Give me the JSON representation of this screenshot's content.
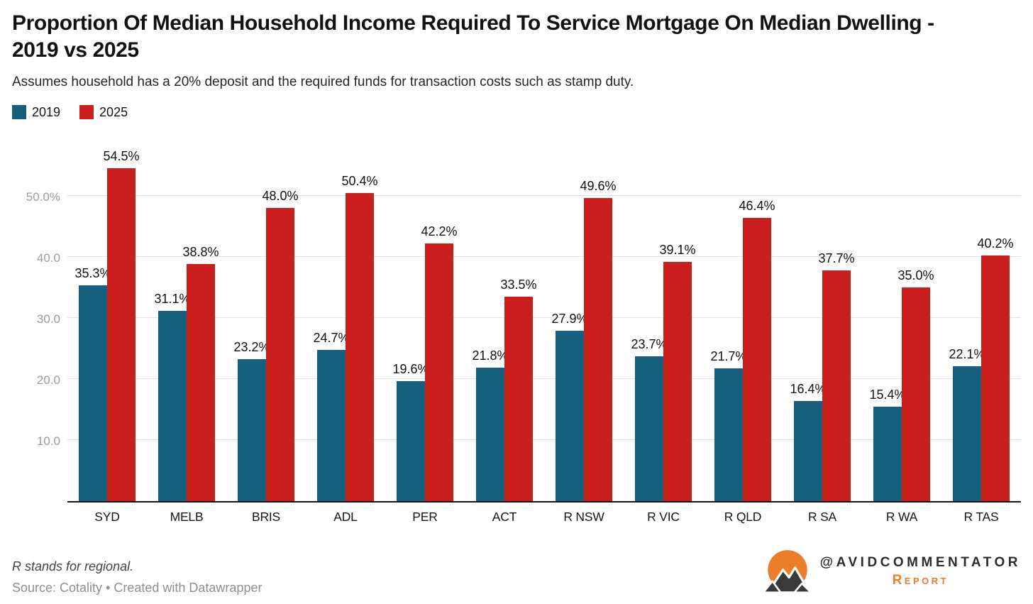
{
  "header": {
    "title": "Proportion Of Median Household Income Required To Service Mortgage On Median Dwelling - 2019 vs 2025",
    "subtitle": "Assumes household has a 20% deposit and the required funds for transaction costs such as stamp duty."
  },
  "legend": {
    "items": [
      {
        "label": "2019",
        "color": "#16607d"
      },
      {
        "label": "2025",
        "color": "#cb1f1e"
      }
    ]
  },
  "chart_data": {
    "type": "bar",
    "title": "Proportion Of Median Household Income Required To Service Mortgage On Median Dwelling - 2019 vs 2025",
    "subtitle": "Assumes household has a 20% deposit and the required funds for transaction costs such as stamp duty.",
    "categories": [
      "SYD",
      "MELB",
      "BRIS",
      "ADL",
      "PER",
      "ACT",
      "R NSW",
      "R VIC",
      "R QLD",
      "R SA",
      "R WA",
      "R TAS"
    ],
    "series": [
      {
        "name": "2019",
        "color": "#16607d",
        "values": [
          35.3,
          31.1,
          23.2,
          24.7,
          19.6,
          21.8,
          27.9,
          23.7,
          21.7,
          16.4,
          15.4,
          22.1
        ]
      },
      {
        "name": "2025",
        "color": "#cb1f1e",
        "values": [
          54.5,
          38.8,
          48.0,
          50.4,
          42.2,
          33.5,
          49.6,
          39.1,
          46.4,
          37.7,
          35.0,
          40.2
        ]
      }
    ],
    "value_label_suffix": "%",
    "y_ticks": [
      {
        "value": 10,
        "label": "10.0"
      },
      {
        "value": 20,
        "label": "20.0"
      },
      {
        "value": 30,
        "label": "30.0"
      },
      {
        "value": 40,
        "label": "40.0"
      },
      {
        "value": 50,
        "label": "50.0%"
      }
    ],
    "ylim": [
      0,
      60
    ],
    "grid": "horizontal",
    "legend_position": "top-left",
    "xlabel": "",
    "ylabel": ""
  },
  "footer": {
    "footnote": "R stands for regional.",
    "source": "Source: Cotality • Created with Datawrapper",
    "brand": {
      "handle": "@AVIDCOMMENTATOR",
      "subtext": "Report",
      "orange": "#ec7d2b",
      "mountain_color": "#3a3a3a"
    }
  }
}
